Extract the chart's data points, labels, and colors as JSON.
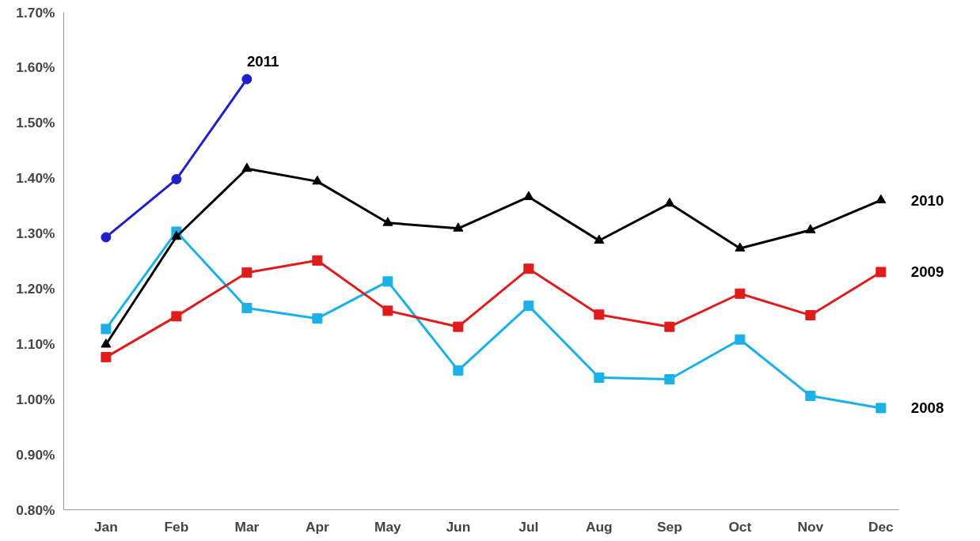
{
  "chart_data": {
    "type": "line",
    "categories": [
      "Jan",
      "Feb",
      "Mar",
      "Apr",
      "May",
      "Jun",
      "Jul",
      "Aug",
      "Sep",
      "Oct",
      "Nov",
      "Dec"
    ],
    "ylim": [
      0.8,
      1.7
    ],
    "yticks": [
      {
        "value": 0.8,
        "label": "0.80%"
      },
      {
        "value": 0.9,
        "label": "0.90%"
      },
      {
        "value": 1.0,
        "label": "1.00%"
      },
      {
        "value": 1.1,
        "label": "1.10%"
      },
      {
        "value": 1.2,
        "label": "1.20%"
      },
      {
        "value": 1.3,
        "label": "1.30%"
      },
      {
        "value": 1.4,
        "label": "1.40%"
      },
      {
        "value": 1.5,
        "label": "1.50%"
      },
      {
        "value": 1.6,
        "label": "1.60%"
      },
      {
        "value": 1.7,
        "label": "1.70%"
      }
    ],
    "grid": false,
    "series": [
      {
        "name": "2008",
        "color": "#1ab0e8",
        "marker": "square",
        "values": [
          1.127,
          1.303,
          1.165,
          1.146,
          1.213,
          1.052,
          1.169,
          1.039,
          1.036,
          1.108,
          1.006,
          0.984
        ]
      },
      {
        "name": "2009",
        "color": "#e01b1b",
        "marker": "square",
        "values": [
          1.076,
          1.15,
          1.229,
          1.251,
          1.16,
          1.131,
          1.236,
          1.153,
          1.131,
          1.191,
          1.152,
          1.23
        ]
      },
      {
        "name": "2010",
        "color": "#000000",
        "marker": "triangle",
        "values": [
          1.099,
          1.294,
          1.417,
          1.394,
          1.319,
          1.309,
          1.366,
          1.287,
          1.354,
          1.273,
          1.306,
          1.36
        ]
      },
      {
        "name": "2011",
        "color": "#1f1fcc",
        "marker": "circle",
        "values": [
          1.293,
          1.398,
          1.579,
          null,
          null,
          null,
          null,
          null,
          null,
          null,
          null,
          null
        ]
      }
    ]
  }
}
